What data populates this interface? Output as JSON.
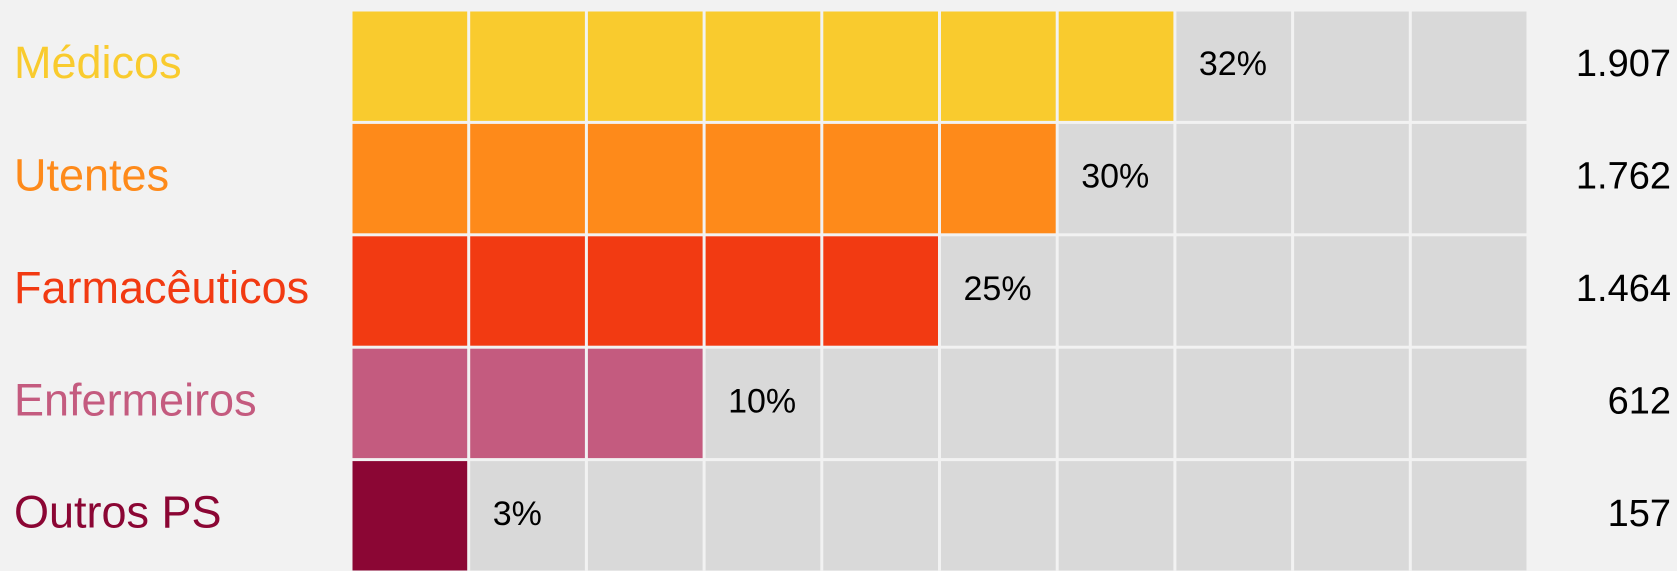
{
  "chart_data": {
    "type": "cell_bar",
    "categories": [
      "Médicos",
      "Utentes",
      "Farmacêuticos",
      "Enfermeiros",
      "Outros PS"
    ],
    "colors": [
      "#f9cb2e",
      "#fe8a1a",
      "#f23a12",
      "#c45b7f",
      "#8b0634"
    ],
    "values": [
      32,
      30,
      25,
      10,
      3
    ],
    "value_labels": [
      "32%",
      "30%",
      "25%",
      "10%",
      "3%"
    ],
    "cells": [
      7,
      6,
      5,
      3,
      1
    ],
    "columns": 10,
    "empty_color": "#d9d9d9",
    "totals": [
      1907,
      1762,
      1464,
      612,
      157
    ],
    "total_labels": [
      "1.907",
      "1.762",
      "1.464",
      "612",
      "157"
    ]
  }
}
